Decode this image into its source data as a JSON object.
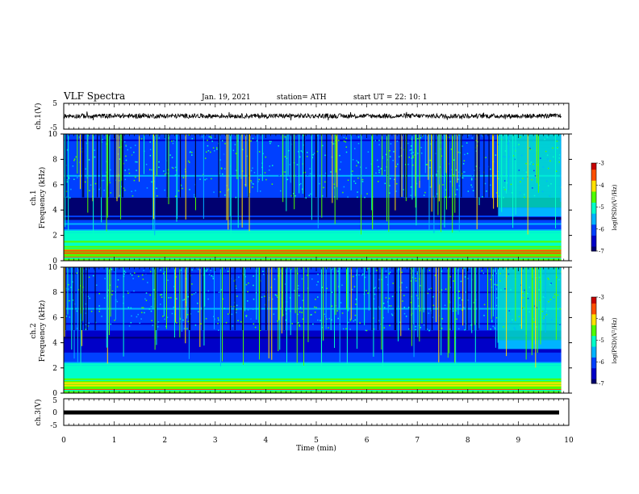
{
  "header": {
    "title": "VLF Spectra",
    "date": "Jan. 19, 2021",
    "station": "station= ATH",
    "start": "start UT =  22: 10: 1"
  },
  "chart_data": {
    "type": "heatmap",
    "x_axis": {
      "label": "Time (min)",
      "min": 0,
      "max": 10,
      "ticks": [
        "0",
        "1",
        "2",
        "3",
        "4",
        "5",
        "6",
        "7",
        "8",
        "9",
        "10"
      ]
    },
    "panels": [
      {
        "id": "ch1-waveform",
        "type": "line",
        "ylabel": "ch.1(V)",
        "ylim": [
          -5,
          5
        ],
        "yticks": [
          "5",
          "-5"
        ]
      },
      {
        "id": "ch1-spectrogram",
        "type": "heatmap",
        "ylabel": "ch.1",
        "ylabel2": "Frequency (kHz)",
        "ylim": [
          0,
          10
        ],
        "yticks": [
          "0",
          "2",
          "4",
          "6",
          "8",
          "10"
        ],
        "colorbar": {
          "label": "log(PSD)(V²/Hz)",
          "min": -7,
          "max": -3,
          "ticks": [
            "-3",
            "-4",
            "-5",
            "-6",
            "-7"
          ]
        }
      },
      {
        "id": "ch2-spectrogram",
        "type": "heatmap",
        "ylabel": "ch.2",
        "ylabel2": "Frequency (kHz)",
        "ylim": [
          0,
          10
        ],
        "yticks": [
          "0",
          "2",
          "4",
          "6",
          "8",
          "10"
        ],
        "colorbar": {
          "label": "log(PSD)(V²/Hz)",
          "min": -7,
          "max": -3,
          "ticks": [
            "-3",
            "-4",
            "-5",
            "-6",
            "-7"
          ]
        }
      },
      {
        "id": "ch3-waveform",
        "type": "line",
        "ylabel": "ch.3(V)",
        "ylim": [
          -5,
          5
        ],
        "yticks": [
          "5",
          "0",
          "-5"
        ]
      }
    ],
    "data_end_min": 9.85,
    "ch1_waveform_mean_v": 0.1,
    "ch3_waveform_mean_v": 0.0,
    "spectrogram_bands_khz": [
      {
        "f": 0.3,
        "level": -3.4
      },
      {
        "f": 0.6,
        "level": -3.6
      },
      {
        "f": 0.8,
        "level": -3.9
      },
      {
        "f": 1.1,
        "level": -4.3
      },
      {
        "f": 1.5,
        "level": -4.6
      },
      {
        "f": 1.9,
        "level": -4.8
      },
      {
        "f": 2.3,
        "level": -4.9
      },
      {
        "f": 2.9,
        "level": -5.6
      },
      {
        "f": 3.5,
        "level": -6.2
      },
      {
        "f": 4.4,
        "level": -6.8
      },
      {
        "f": 5.5,
        "level": -6.0
      },
      {
        "f": 6.7,
        "level": -5.3
      },
      {
        "f": 8.0,
        "level": -6.1
      },
      {
        "f": 9.5,
        "level": -6.3
      }
    ],
    "colors": {
      "colormap": [
        "#000070",
        "#0000c8",
        "#0040ff",
        "#00b4ff",
        "#00ffc8",
        "#50ff00",
        "#ffe000",
        "#ff5000",
        "#c80000",
        "#ffffff"
      ],
      "axis": "#000000"
    }
  }
}
